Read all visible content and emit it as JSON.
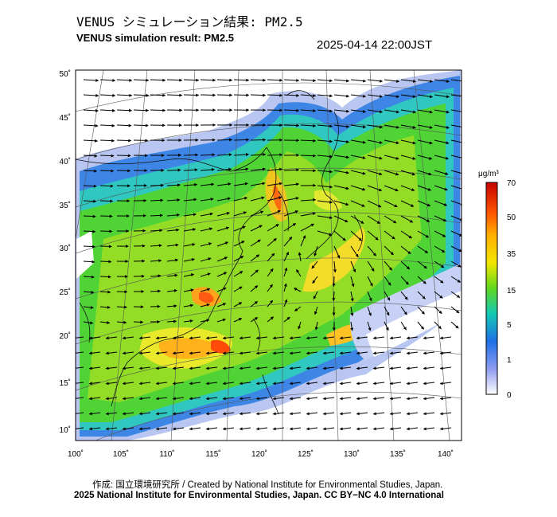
{
  "header": {
    "title_jp": "VENUS シミュレーション結果: PM2.5",
    "title_en": "VENUS simulation result: PM2.5",
    "timestamp": "2025-04-14 22:00JST"
  },
  "map": {
    "lon_range": [
      100,
      142
    ],
    "lat_range": [
      9,
      51
    ],
    "x_ticks": [
      "100˚",
      "105˚",
      "110˚",
      "115˚",
      "120˚",
      "125˚",
      "130˚",
      "135˚",
      "140˚"
    ],
    "y_ticks": [
      "50˚",
      "45˚",
      "40˚",
      "35˚",
      "30˚",
      "25˚",
      "20˚",
      "15˚",
      "10˚"
    ],
    "variable": "PM2.5"
  },
  "colorbar": {
    "unit": "μg/m³",
    "labels": [
      "70",
      "50",
      "35",
      "15",
      "5",
      "1",
      "0"
    ],
    "colors": [
      "#d10000",
      "#ff6a00",
      "#ffc400",
      "#c8e800",
      "#36d23a",
      "#12c7c2",
      "#1f78e8",
      "#9ba7f0",
      "#ffffff"
    ]
  },
  "footer": {
    "credit_line": "作成: 国立環境研究所 / Created by National Institute for Environmental Studies, Japan.",
    "copyright_line": "2025 National Institute for Environmental Studies, Japan. CC BY−NC 4.0 International"
  }
}
